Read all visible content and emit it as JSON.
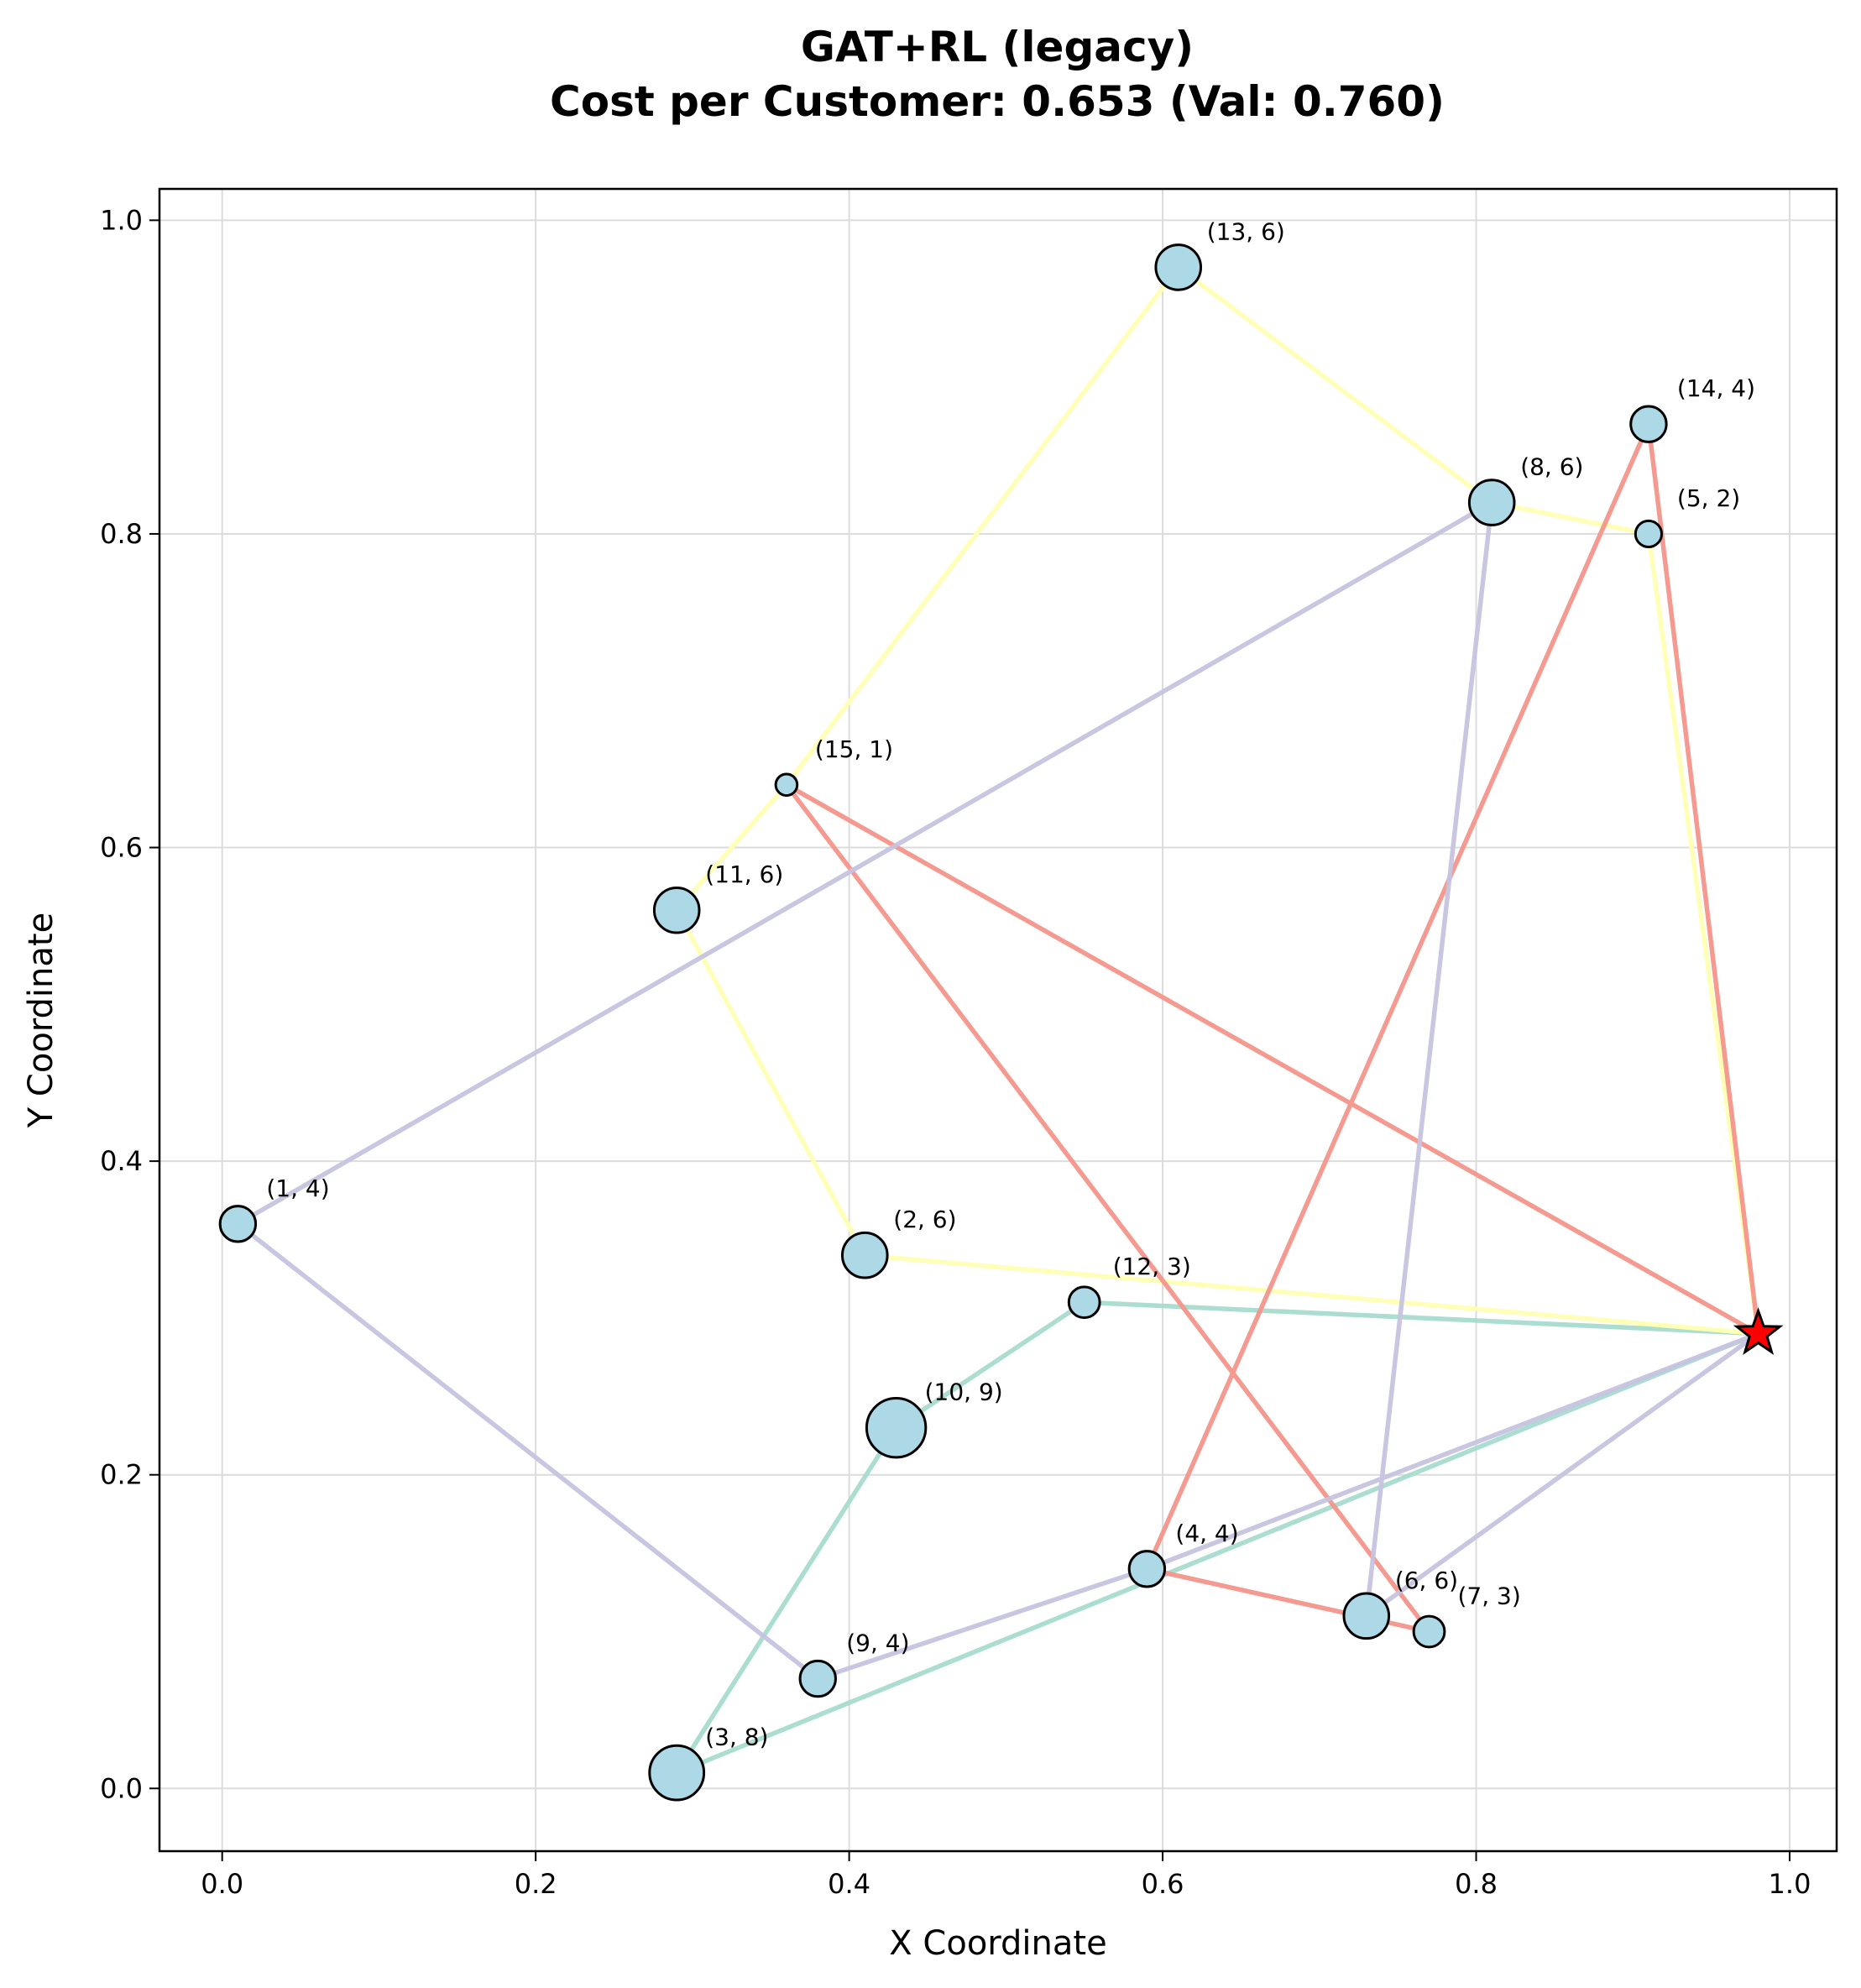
{
  "chart_data": {
    "type": "scatter",
    "title": "GAT+RL (legacy)",
    "subtitle": "Cost per Customer: 0.653 (Val: 0.760)",
    "xlabel": "X Coordinate",
    "ylabel": "Y Coordinate",
    "xlim": [
      -0.04,
      1.03
    ],
    "ylim": [
      -0.04,
      1.02
    ],
    "x_ticks": [
      "0.0",
      "0.2",
      "0.4",
      "0.6",
      "0.8",
      "1.0"
    ],
    "y_ticks": [
      "0.0",
      "0.2",
      "0.4",
      "0.6",
      "0.8",
      "1.0"
    ],
    "grid": true,
    "depot": {
      "x": 0.98,
      "y": 0.29,
      "color": "#ff0000",
      "marker": "star"
    },
    "node_color": "#add8e6",
    "customers": [
      {
        "id": 1,
        "demand": 4,
        "x": 0.01,
        "y": 0.36,
        "label": "(1, 4)"
      },
      {
        "id": 2,
        "demand": 6,
        "x": 0.41,
        "y": 0.34,
        "label": "(2, 6)"
      },
      {
        "id": 3,
        "demand": 8,
        "x": 0.29,
        "y": 0.01,
        "label": "(3, 8)"
      },
      {
        "id": 4,
        "demand": 4,
        "x": 0.59,
        "y": 0.14,
        "label": "(4, 4)"
      },
      {
        "id": 5,
        "demand": 2,
        "x": 0.91,
        "y": 0.8,
        "label": "(5, 2)"
      },
      {
        "id": 6,
        "demand": 6,
        "x": 0.73,
        "y": 0.11,
        "label": "(6, 6)"
      },
      {
        "id": 7,
        "demand": 3,
        "x": 0.77,
        "y": 0.1,
        "label": "(7, 3)"
      },
      {
        "id": 8,
        "demand": 6,
        "x": 0.81,
        "y": 0.82,
        "label": "(8, 6)"
      },
      {
        "id": 9,
        "demand": 4,
        "x": 0.38,
        "y": 0.07,
        "label": "(9, 4)"
      },
      {
        "id": 10,
        "demand": 9,
        "x": 0.43,
        "y": 0.23,
        "label": "(10, 9)"
      },
      {
        "id": 11,
        "demand": 6,
        "x": 0.29,
        "y": 0.56,
        "label": "(11, 6)"
      },
      {
        "id": 12,
        "demand": 3,
        "x": 0.55,
        "y": 0.31,
        "label": "(12, 3)"
      },
      {
        "id": 13,
        "demand": 6,
        "x": 0.61,
        "y": 0.97,
        "label": "(13, 6)"
      },
      {
        "id": 14,
        "demand": 4,
        "x": 0.91,
        "y": 0.87,
        "label": "(14, 4)"
      },
      {
        "id": 15,
        "demand": 1,
        "x": 0.36,
        "y": 0.64,
        "label": "(15, 1)"
      }
    ],
    "routes": [
      {
        "color": "#a6dbcf",
        "path": [
          0,
          12,
          10,
          3,
          0
        ]
      },
      {
        "color": "#ffffb3",
        "path": [
          0,
          2,
          11,
          15,
          13,
          8,
          5,
          0
        ]
      },
      {
        "color": "#f4958a",
        "path": [
          0,
          14,
          4,
          7,
          15,
          0
        ]
      },
      {
        "color": "#c6c3df",
        "path": [
          0,
          4,
          9,
          1,
          8,
          6,
          0
        ]
      }
    ]
  }
}
